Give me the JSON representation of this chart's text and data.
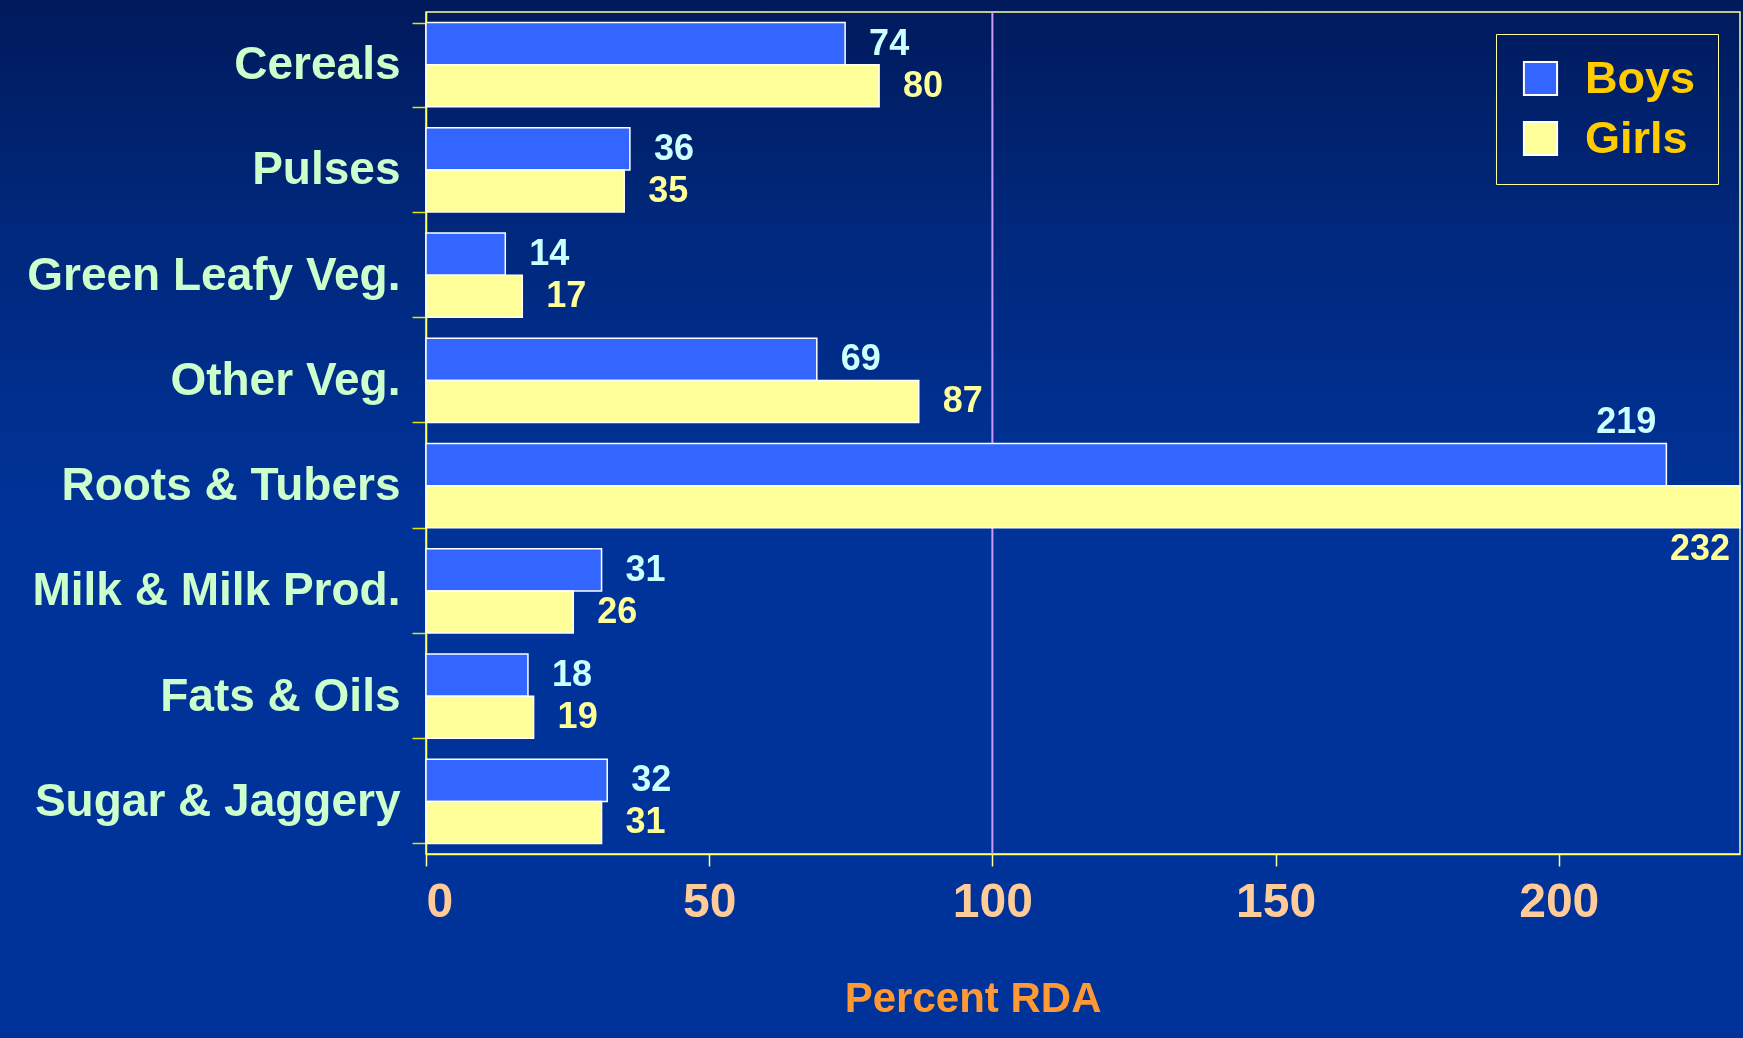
{
  "chart_data": {
    "type": "bar",
    "orientation": "horizontal",
    "categories": [
      "Cereals",
      "Pulses",
      "Green Leafy Veg.",
      "Other Veg.",
      "Roots & Tubers",
      "Milk & Milk Prod.",
      "Fats & Oils",
      "Sugar & Jaggery"
    ],
    "series": [
      {
        "name": "Boys",
        "color": "#3366ff",
        "values": [
          74,
          36,
          14,
          69,
          219,
          31,
          18,
          32
        ]
      },
      {
        "name": "Girls",
        "color": "#ffff99",
        "values": [
          80,
          35,
          17,
          87,
          232,
          26,
          19,
          31
        ]
      }
    ],
    "xlabel": "Percent RDA",
    "xlim": [
      0,
      232
    ],
    "xticks": [
      0,
      50,
      100,
      150,
      200
    ],
    "grid": false,
    "data_labels": true,
    "legend": "top right",
    "ref_lines": [
      {
        "axis": "x",
        "value": 100,
        "color": "#cc99ff"
      }
    ]
  }
}
